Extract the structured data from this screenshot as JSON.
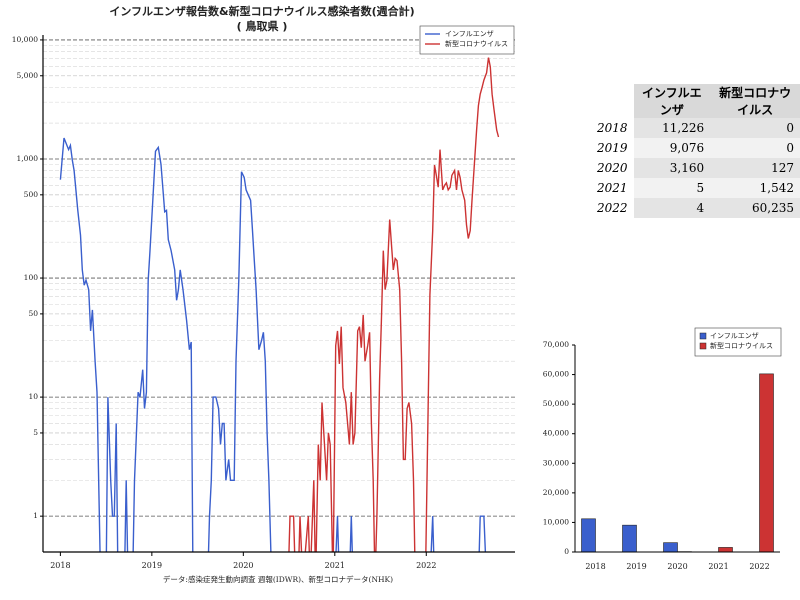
{
  "chart_data": [
    {
      "type": "line",
      "title": "インフルエンザ報告数&新型コロナウイルス感染者数(週合計)",
      "subtitle": "( 鳥取県 )",
      "note": "データ:感染症発生動向調査 週報(IDWR)、新型コロナデータ(NHK)",
      "log_y": true,
      "grid": true,
      "legend": "upper right",
      "xlim": [
        2017.81,
        2022.97
      ],
      "xticks": [
        2018,
        2019,
        2020,
        2021,
        2022
      ],
      "ylim": [
        0.5,
        11000
      ],
      "yticks": [
        1,
        5,
        10,
        50,
        100,
        500,
        {
          "value": 1000,
          "label": "1,000"
        },
        {
          "value": 5000,
          "label": "5,000"
        },
        {
          "value": 10000,
          "label": "10,000"
        }
      ],
      "y_minor_ticks": [
        2,
        3,
        4,
        6,
        7,
        8,
        9,
        20,
        30,
        40,
        60,
        70,
        80,
        90,
        200,
        300,
        400,
        600,
        700,
        800,
        900,
        2000,
        3000,
        4000,
        6000,
        7000,
        8000,
        9000
      ],
      "series": [
        {
          "name": "インフルエンザ",
          "color": "#3a5fcd",
          "x": [
            2018.0,
            2018.04,
            2018.09,
            2018.11,
            2018.13,
            2018.15,
            2018.19,
            2018.22,
            2018.24,
            2018.26,
            2018.28,
            2018.31,
            2018.33,
            2018.35,
            2018.38,
            2018.4,
            2018.44,
            2018.5,
            2018.52,
            2018.55,
            2018.57,
            2018.59,
            2018.61,
            2018.63,
            2018.7,
            2018.72,
            2018.74,
            2018.79,
            2018.81,
            2018.85,
            2018.87,
            2018.9,
            2018.92,
            2018.94,
            2018.96,
            2018.98,
            2019.01,
            2019.04,
            2019.07,
            2019.1,
            2019.14,
            2019.16,
            2019.18,
            2019.21,
            2019.25,
            2019.27,
            2019.29,
            2019.31,
            2019.34,
            2019.38,
            2019.41,
            2019.43,
            2019.45,
            2019.61,
            2019.63,
            2019.65,
            2019.67,
            2019.7,
            2019.73,
            2019.75,
            2019.77,
            2019.79,
            2019.81,
            2019.84,
            2019.86,
            2019.9,
            2019.92,
            2019.95,
            2019.98,
            2020.01,
            2020.03,
            2020.08,
            2020.1,
            2020.12,
            2020.14,
            2020.17,
            2020.2,
            2020.22,
            2020.24,
            2020.26,
            2020.28,
            2020.31,
            2021.0,
            2021.03,
            2021.05,
            2021.16,
            2021.18,
            2021.2,
            2022.04,
            2022.07,
            2022.09,
            2022.57,
            2022.59,
            2022.63,
            2022.66,
            2022.97
          ],
          "values": [
            670,
            1500,
            1200,
            1300,
            980,
            800,
            370,
            230,
            117,
            87,
            96,
            80,
            36,
            54,
            20,
            11,
            0,
            0,
            10,
            2,
            1,
            1,
            6,
            0,
            0,
            2,
            0,
            0,
            2,
            11,
            10,
            17,
            8,
            11,
            96,
            170,
            450,
            1160,
            1250,
            900,
            360,
            370,
            210,
            170,
            117,
            65,
            80,
            117,
            80,
            44,
            25,
            29,
            0,
            0,
            1,
            2,
            10,
            10,
            8,
            4,
            6,
            6,
            2,
            3,
            2,
            2,
            20,
            96,
            780,
            700,
            550,
            450,
            250,
            140,
            80,
            25,
            30,
            35,
            20,
            5,
            2,
            0,
            0,
            1,
            0,
            0,
            1,
            0,
            0,
            1,
            0,
            0,
            1,
            1,
            0,
            0
          ]
        },
        {
          "name": "新型コロナウイルス",
          "color": "#cc3333",
          "x": [
            2020.02,
            2020.49,
            2020.51,
            2020.55,
            2020.57,
            2020.6,
            2020.62,
            2020.65,
            2020.71,
            2020.73,
            2020.77,
            2020.79,
            2020.82,
            2020.84,
            2020.86,
            2020.91,
            2020.93,
            2020.95,
            2020.98,
            2021.01,
            2021.03,
            2021.05,
            2021.07,
            2021.09,
            2021.12,
            2021.14,
            2021.16,
            2021.18,
            2021.2,
            2021.22,
            2021.25,
            2021.27,
            2021.29,
            2021.31,
            2021.33,
            2021.36,
            2021.38,
            2021.4,
            2021.42,
            2021.44,
            2021.46,
            2021.49,
            2021.51,
            2021.53,
            2021.55,
            2021.57,
            2021.6,
            2021.62,
            2021.64,
            2021.66,
            2021.68,
            2021.71,
            2021.73,
            2021.75,
            2021.77,
            2021.79,
            2021.81,
            2021.84,
            2021.86,
            2021.88,
            2021.99,
            2022.04,
            2022.07,
            2022.09,
            2022.11,
            2022.13,
            2022.15,
            2022.18,
            2022.2,
            2022.22,
            2022.24,
            2022.26,
            2022.28,
            2022.31,
            2022.33,
            2022.35,
            2022.37,
            2022.39,
            2022.42,
            2022.44,
            2022.46,
            2022.48,
            2022.5,
            2022.55,
            2022.57,
            2022.59,
            2022.61,
            2022.63,
            2022.66,
            2022.68,
            2022.7,
            2022.72,
            2022.74,
            2022.77,
            2022.79
          ],
          "values": [
            0,
            0,
            1,
            1,
            0,
            0,
            1,
            0,
            1,
            0,
            2,
            0,
            4,
            2,
            9,
            2,
            5,
            4,
            0,
            27,
            36,
            19,
            39,
            12,
            9,
            6,
            4,
            11,
            4,
            5,
            36,
            39,
            26,
            49,
            20,
            27,
            35,
            6,
            2,
            0,
            1,
            14,
            44,
            170,
            80,
            96,
            310,
            190,
            117,
            146,
            140,
            80,
            20,
            3,
            3,
            8,
            9,
            6,
            2,
            0,
            0,
            72,
            250,
            890,
            730,
            580,
            1200,
            550,
            600,
            630,
            550,
            580,
            730,
            800,
            550,
            800,
            700,
            550,
            450,
            280,
            215,
            250,
            450,
            1750,
            2800,
            3500,
            4000,
            4600,
            5300,
            7100,
            5950,
            3500,
            2600,
            1750,
            1530
          ]
        }
      ]
    },
    {
      "type": "bar",
      "legend": "upper right",
      "categories": [
        "2018",
        "2019",
        "2020",
        "2021",
        "2022"
      ],
      "ylim": [
        0,
        70000
      ],
      "yticks": [
        0,
        {
          "value": 10000,
          "label": "10,000"
        },
        {
          "value": 20000,
          "label": "20,000"
        },
        {
          "value": 30000,
          "label": "30,000"
        },
        {
          "value": 40000,
          "label": "40,000"
        },
        {
          "value": 50000,
          "label": "50,000"
        },
        {
          "value": 60000,
          "label": "60,000"
        },
        {
          "value": 70000,
          "label": "70,000"
        }
      ],
      "series": [
        {
          "name": "インフルエンザ",
          "color": "#3a5fcd",
          "values": [
            11226,
            9076,
            3160,
            5,
            4
          ]
        },
        {
          "name": "新型コロナウイルス",
          "color": "#cc3333",
          "values": [
            0,
            0,
            127,
            1542,
            60235
          ]
        }
      ]
    }
  ],
  "table": {
    "columns": [
      "インフルエンザ",
      "新型コロナウイルス"
    ],
    "rows": [
      {
        "label": "2018",
        "cells": [
          "11,226",
          "0"
        ]
      },
      {
        "label": "2019",
        "cells": [
          "9,076",
          "0"
        ]
      },
      {
        "label": "2020",
        "cells": [
          "3,160",
          "127"
        ]
      },
      {
        "label": "2021",
        "cells": [
          "5",
          "1,542"
        ]
      },
      {
        "label": "2022",
        "cells": [
          "4",
          "60,235"
        ]
      }
    ]
  }
}
